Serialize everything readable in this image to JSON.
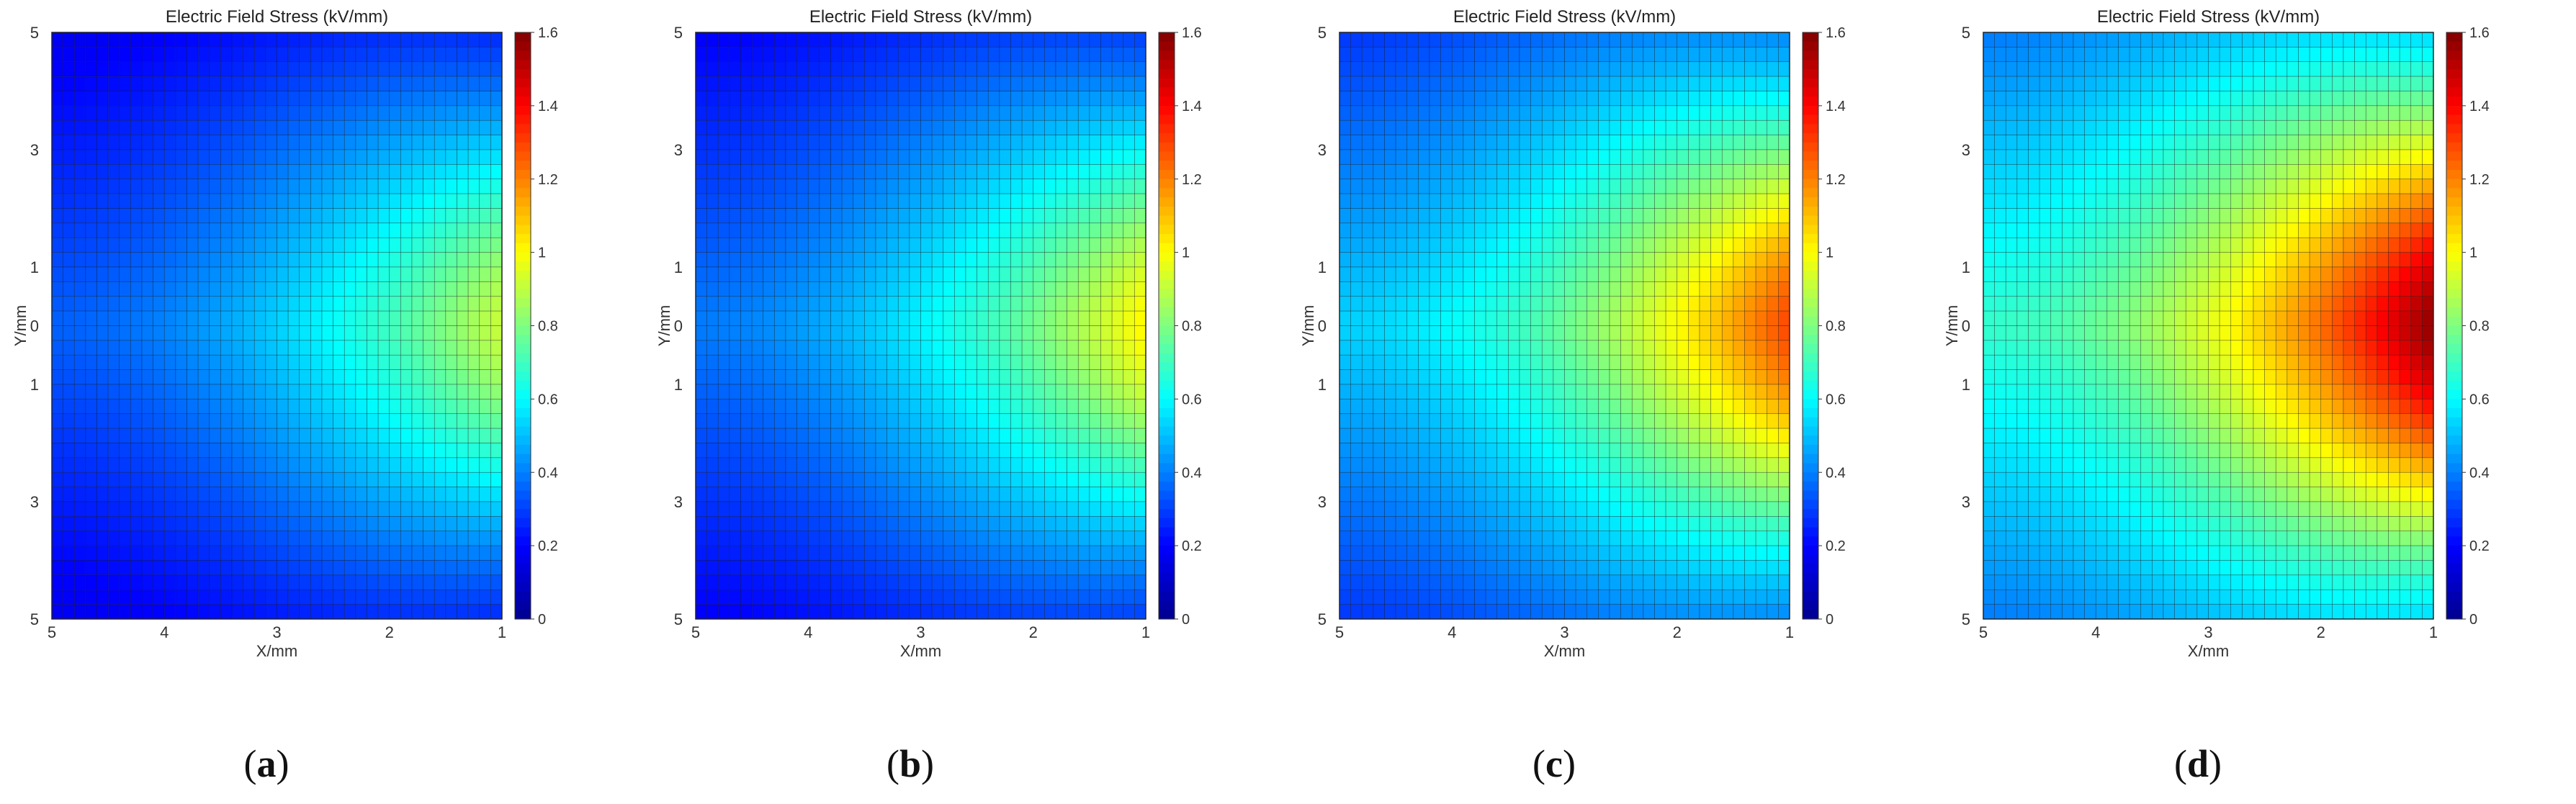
{
  "colors": {
    "cell_grid": "#1a1a1a",
    "colormap": [
      "#00008f",
      "#0000ff",
      "#0080ff",
      "#00ffff",
      "#80ff80",
      "#ffff00",
      "#ff8000",
      "#ff0000",
      "#800000"
    ]
  },
  "chart_data": [
    {
      "type": "heatmap",
      "title": "Electric Field Stress (kV/mm)",
      "xlabel": "X/mm",
      "ylabel": "Y/mm",
      "xticks": [
        "5",
        "4",
        "3",
        "2",
        "1"
      ],
      "yticks": [
        "5",
        "3",
        "1",
        "0",
        "1",
        "3",
        "5"
      ],
      "colorbar": {
        "range": [
          0,
          1.6
        ],
        "ticks": [
          "0",
          "0.2",
          "0.4",
          "0.6",
          "0.8",
          "1",
          "1.2",
          "1.4",
          "1.6"
        ]
      },
      "grid": {
        "cols": 40,
        "rows": 40
      },
      "field": {
        "min_value": 0.05,
        "peak_value": 0.92,
        "peak_at": "right-center"
      },
      "caption": "a"
    },
    {
      "type": "heatmap",
      "title": "Electric Field Stress (kV/mm)",
      "xlabel": "X/mm",
      "ylabel": "Y/mm",
      "xticks": [
        "5",
        "4",
        "3",
        "2",
        "1"
      ],
      "yticks": [
        "5",
        "3",
        "1",
        "0",
        "1",
        "3",
        "5"
      ],
      "colorbar": {
        "range": [
          0,
          1.6
        ],
        "ticks": [
          "0",
          "0.2",
          "0.4",
          "0.6",
          "0.8",
          "1",
          "1.2",
          "1.4",
          "1.6"
        ]
      },
      "grid": {
        "cols": 40,
        "rows": 40
      },
      "field": {
        "min_value": 0.06,
        "peak_value": 1.02,
        "peak_at": "right-center"
      },
      "caption": "b"
    },
    {
      "type": "heatmap",
      "title": "Electric Field Stress (kV/mm)",
      "xlabel": "X/mm",
      "ylabel": "Y/mm",
      "xticks": [
        "5",
        "4",
        "3",
        "2",
        "1"
      ],
      "yticks": [
        "5",
        "3",
        "1",
        "0",
        "1",
        "3",
        "5"
      ],
      "colorbar": {
        "range": [
          0,
          1.6
        ],
        "ticks": [
          "0",
          "0.2",
          "0.4",
          "0.6",
          "0.8",
          "1",
          "1.2",
          "1.4",
          "1.6"
        ]
      },
      "grid": {
        "cols": 40,
        "rows": 40
      },
      "field": {
        "min_value": 0.12,
        "peak_value": 1.3,
        "peak_at": "right-center"
      },
      "caption": "c"
    },
    {
      "type": "heatmap",
      "title": "Electric Field Stress (kV/mm)",
      "xlabel": "X/mm",
      "ylabel": "Y/mm",
      "xticks": [
        "5",
        "4",
        "3",
        "2",
        "1"
      ],
      "yticks": [
        "5",
        "3",
        "1",
        "0",
        "1",
        "3",
        "5"
      ],
      "colorbar": {
        "range": [
          0,
          1.6
        ],
        "ticks": [
          "0",
          "0.2",
          "0.4",
          "0.6",
          "0.8",
          "1",
          "1.2",
          "1.4",
          "1.6"
        ]
      },
      "grid": {
        "cols": 40,
        "rows": 40
      },
      "field": {
        "min_value": 0.2,
        "peak_value": 1.58,
        "peak_at": "right-center"
      },
      "caption": "d"
    }
  ]
}
